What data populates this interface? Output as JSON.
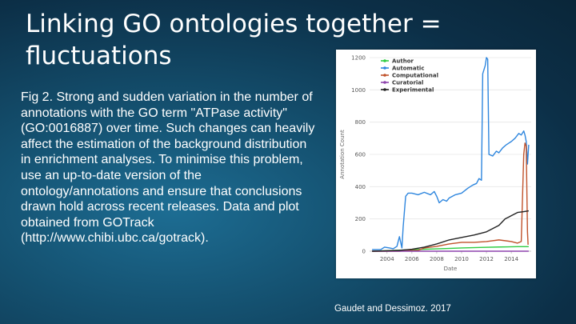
{
  "slide": {
    "title": "Linking GO ontologies together = fluctuations",
    "caption": "Fig 2. Strong and sudden variation in the number of annotations with the GO term \"ATPase activity\" (GO:0016887) over time. Such changes can heavily affect the estimation of the background distribution in enrichment analyses. To minimise this problem, use an up-to-date version of the ontology/annotations and ensure that conclusions drawn hold across recent releases. Data and plot obtained from GOTrack (http://www.chibi.ubc.ca/gotrack).",
    "citation": "Gaudet and Dessimoz. 2017"
  },
  "chart_data": {
    "type": "line",
    "title": "",
    "xlabel": "Date",
    "ylabel": "Annotation Count",
    "xlim": [
      2002.6,
      2015.6
    ],
    "ylim": [
      0,
      1200
    ],
    "xticks": [
      2004,
      2006,
      2008,
      2010,
      2012,
      2014
    ],
    "yticks": [
      0,
      200,
      400,
      600,
      800,
      1000,
      1200
    ],
    "grid": true,
    "legend_position": "top-left",
    "series": [
      {
        "name": "Author",
        "color": "#2ecc40",
        "points": [
          [
            2002.8,
            0
          ],
          [
            2004.0,
            3
          ],
          [
            2005.5,
            8
          ],
          [
            2007.0,
            12
          ],
          [
            2008.5,
            16
          ],
          [
            2010.0,
            20
          ],
          [
            2011.5,
            23
          ],
          [
            2013.0,
            26
          ],
          [
            2014.5,
            28
          ],
          [
            2015.4,
            28
          ]
        ]
      },
      {
        "name": "Automatic",
        "color": "#2e86de",
        "points": [
          [
            2002.8,
            10
          ],
          [
            2003.5,
            10
          ],
          [
            2003.8,
            25
          ],
          [
            2004.2,
            20
          ],
          [
            2004.5,
            15
          ],
          [
            2004.8,
            30
          ],
          [
            2005.0,
            90
          ],
          [
            2005.2,
            20
          ],
          [
            2005.3,
            150
          ],
          [
            2005.5,
            340
          ],
          [
            2005.7,
            360
          ],
          [
            2006.0,
            360
          ],
          [
            2006.5,
            350
          ],
          [
            2007.0,
            365
          ],
          [
            2007.5,
            350
          ],
          [
            2007.8,
            370
          ],
          [
            2008.0,
            340
          ],
          [
            2008.2,
            300
          ],
          [
            2008.5,
            320
          ],
          [
            2008.8,
            310
          ],
          [
            2009.0,
            330
          ],
          [
            2009.5,
            350
          ],
          [
            2010.0,
            360
          ],
          [
            2010.5,
            390
          ],
          [
            2010.9,
            410
          ],
          [
            2011.2,
            420
          ],
          [
            2011.4,
            450
          ],
          [
            2011.6,
            440
          ],
          [
            2011.7,
            1100
          ],
          [
            2011.9,
            1150
          ],
          [
            2012.0,
            1200
          ],
          [
            2012.1,
            1190
          ],
          [
            2012.2,
            600
          ],
          [
            2012.5,
            590
          ],
          [
            2012.8,
            620
          ],
          [
            2013.0,
            610
          ],
          [
            2013.3,
            640
          ],
          [
            2013.6,
            660
          ],
          [
            2014.0,
            680
          ],
          [
            2014.3,
            700
          ],
          [
            2014.6,
            730
          ],
          [
            2014.8,
            720
          ],
          [
            2015.0,
            745
          ],
          [
            2015.1,
            720
          ],
          [
            2015.2,
            680
          ],
          [
            2015.3,
            540
          ],
          [
            2015.4,
            660
          ]
        ]
      },
      {
        "name": "Computational",
        "color": "#c0522b",
        "points": [
          [
            2002.8,
            0
          ],
          [
            2005.0,
            0
          ],
          [
            2005.5,
            3
          ],
          [
            2006.5,
            5
          ],
          [
            2007.0,
            20
          ],
          [
            2008.0,
            30
          ],
          [
            2009.0,
            45
          ],
          [
            2010.0,
            55
          ],
          [
            2011.0,
            55
          ],
          [
            2012.0,
            60
          ],
          [
            2013.0,
            70
          ],
          [
            2014.0,
            60
          ],
          [
            2014.5,
            50
          ],
          [
            2014.8,
            60
          ],
          [
            2015.0,
            600
          ],
          [
            2015.1,
            670
          ],
          [
            2015.2,
            650
          ],
          [
            2015.3,
            120
          ],
          [
            2015.35,
            40
          ]
        ]
      },
      {
        "name": "Curatorial",
        "color": "#8e44ad",
        "points": [
          [
            2002.8,
            0
          ],
          [
            2015.4,
            0
          ]
        ]
      },
      {
        "name": "Experimental",
        "color": "#222222",
        "points": [
          [
            2002.8,
            0
          ],
          [
            2005.0,
            5
          ],
          [
            2006.0,
            12
          ],
          [
            2007.0,
            25
          ],
          [
            2008.0,
            45
          ],
          [
            2009.0,
            70
          ],
          [
            2010.0,
            85
          ],
          [
            2011.0,
            100
          ],
          [
            2012.0,
            120
          ],
          [
            2013.0,
            160
          ],
          [
            2013.5,
            200
          ],
          [
            2014.0,
            220
          ],
          [
            2014.5,
            240
          ],
          [
            2015.0,
            245
          ],
          [
            2015.4,
            250
          ]
        ]
      }
    ]
  }
}
